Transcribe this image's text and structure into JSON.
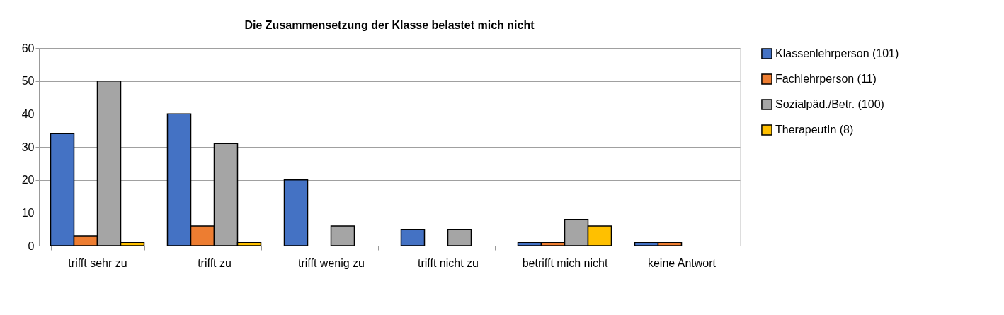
{
  "chart_data": {
    "type": "bar",
    "title": "Die Zusammensetzung der Klasse belastet mich nicht",
    "categories": [
      "trifft sehr zu",
      "trifft zu",
      "trifft wenig zu",
      "trifft nicht zu",
      "betrifft mich nicht",
      "keine Antwort"
    ],
    "series": [
      {
        "name": "Klassenlehrperson (101)",
        "color": "#4472c4",
        "values": [
          34,
          40,
          20,
          5,
          1,
          1
        ]
      },
      {
        "name": "Fachlehrperson (11)",
        "color": "#ed7d31",
        "values": [
          3,
          6,
          null,
          null,
          1,
          1
        ]
      },
      {
        "name": "Sozialpäd./Betr. (100)",
        "color": "#a5a5a5",
        "values": [
          50,
          31,
          6,
          5,
          8,
          null
        ]
      },
      {
        "name": "TherapeutIn (8)",
        "color": "#ffc000",
        "values": [
          1,
          1,
          null,
          null,
          6,
          null
        ]
      }
    ],
    "ylim": [
      0,
      60
    ],
    "yticks": [
      0,
      10,
      20,
      30,
      40,
      50,
      60
    ],
    "grid": "y",
    "legend": "right"
  }
}
